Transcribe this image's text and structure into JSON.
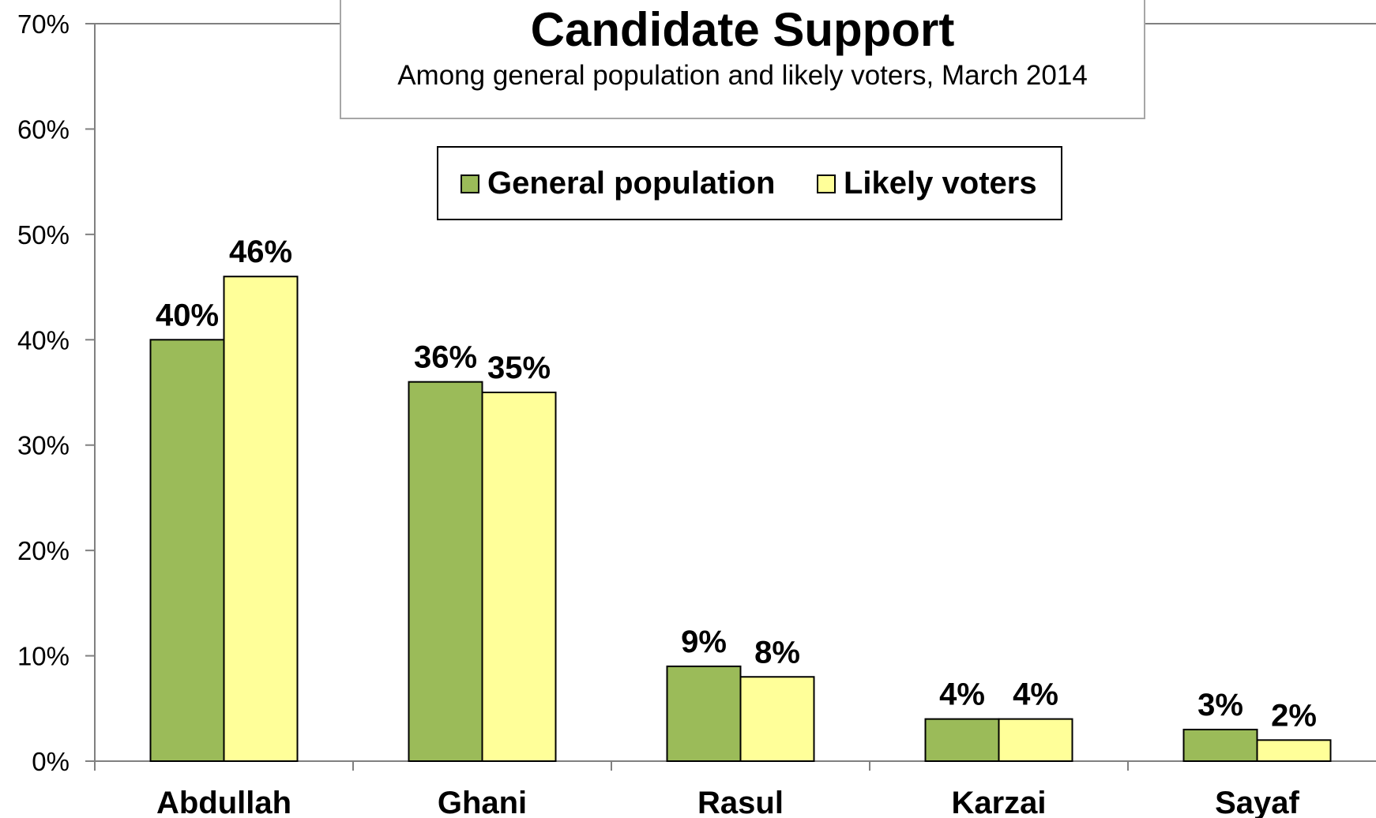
{
  "chart_data": {
    "type": "bar",
    "title": "Candidate Support",
    "subtitle": "Among general population and likely voters, March 2014",
    "categories": [
      "Abdullah",
      "Ghani",
      "Rasul",
      "Karzai",
      "Sayaf"
    ],
    "series": [
      {
        "name": "General population",
        "values": [
          40,
          36,
          9,
          4,
          3
        ],
        "color": "#9bbb59"
      },
      {
        "name": "Likely voters",
        "values": [
          46,
          35,
          8,
          4,
          2
        ],
        "color": "#ffff99"
      }
    ],
    "data_labels": [
      [
        "40%",
        "36%",
        "9%",
        "4%",
        "3%"
      ],
      [
        "46%",
        "35%",
        "8%",
        "4%",
        "2%"
      ]
    ],
    "yticks": [
      {
        "value": 0,
        "label": "0%"
      },
      {
        "value": 10,
        "label": "10%"
      },
      {
        "value": 20,
        "label": "20%"
      },
      {
        "value": 30,
        "label": "30%"
      },
      {
        "value": 40,
        "label": "40%"
      },
      {
        "value": 50,
        "label": "50%"
      },
      {
        "value": 60,
        "label": "60%"
      },
      {
        "value": 70,
        "label": "70%"
      }
    ],
    "ylim": [
      0,
      70
    ],
    "xlabel": "",
    "ylabel": "",
    "grid": false,
    "legend_position": "top-center",
    "axis_color": "#808080",
    "bar_outline_color": "#000000"
  }
}
